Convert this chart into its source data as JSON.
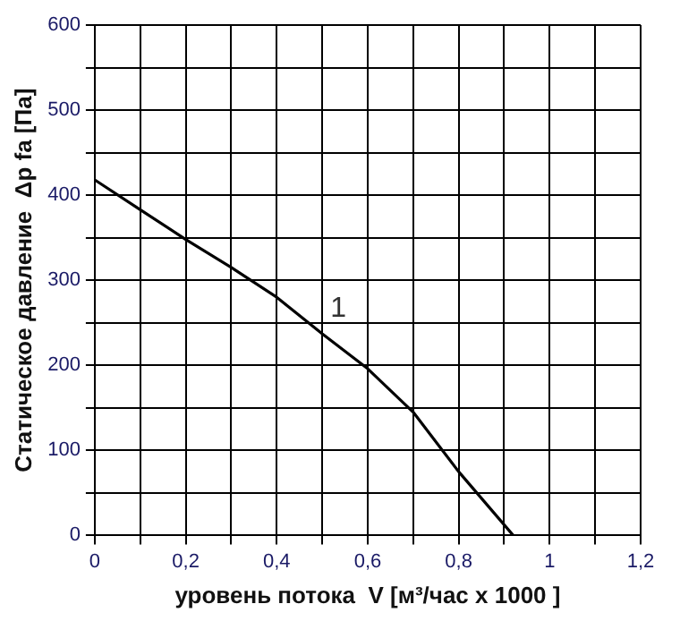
{
  "chart_data": {
    "type": "line",
    "xlabel": "уровень потока  V [м³/час x 1000 ]",
    "ylabel": "Статическое давление  Δp fa [Па]",
    "series": [
      {
        "name": "1",
        "color": "#000000",
        "x": [
          0,
          0.1,
          0.2,
          0.3,
          0.4,
          0.5,
          0.6,
          0.7,
          0.8,
          0.92
        ],
        "values": [
          418,
          383,
          348,
          315,
          280,
          237,
          196,
          145,
          75,
          0
        ]
      }
    ],
    "xlim": [
      0,
      1.2
    ],
    "xticks": [
      0,
      {
        "value": 0.1,
        "label": null
      },
      {
        "value": 0.2,
        "label": "0,2"
      },
      {
        "value": 0.3,
        "label": null
      },
      {
        "value": 0.4,
        "label": "0,4"
      },
      {
        "value": 0.5,
        "label": null
      },
      {
        "value": 0.6,
        "label": "0,6"
      },
      {
        "value": 0.7,
        "label": null
      },
      {
        "value": 0.8,
        "label": "0,8"
      },
      {
        "value": 0.9,
        "label": null
      },
      1,
      {
        "value": 1.1,
        "label": null
      },
      {
        "value": 1.2,
        "label": "1,2"
      }
    ],
    "ylim": [
      0,
      600
    ],
    "yticks": [
      0,
      {
        "value": 50,
        "label": null
      },
      100,
      {
        "value": 150,
        "label": null
      },
      200,
      {
        "value": 250,
        "label": null
      },
      300,
      {
        "value": 350,
        "label": null
      },
      400,
      {
        "value": 450,
        "label": null
      },
      500,
      {
        "value": 550,
        "label": null
      },
      600
    ],
    "grid": true,
    "legend": false,
    "marker": "none",
    "line_style": "solid"
  }
}
